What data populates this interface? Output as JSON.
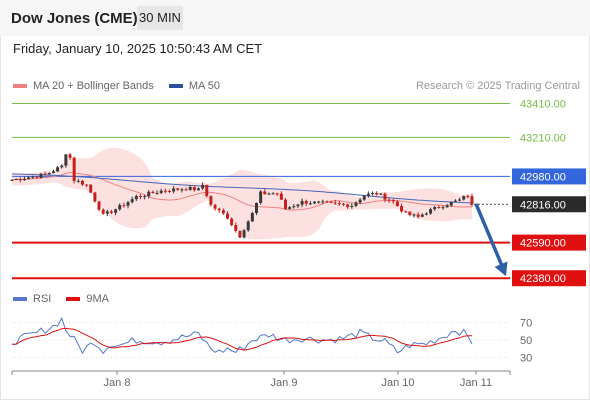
{
  "header": {
    "title": "Dow Jones (CME)",
    "interval": "30 MIN",
    "timestamp": "Friday, January 10, 2025 10:50:43 AM CET"
  },
  "legend": {
    "ma20_label": "MA 20 + Bollinger Bands",
    "ma50_label": "MA 50",
    "credit": "Research © 2025 Trading Central"
  },
  "rsi_legend": {
    "rsi_label": "RSI",
    "ma_label": "9MA"
  },
  "colors": {
    "up": "#3a3a3a",
    "down": "#c41f1f",
    "ma20": "#f08080",
    "bollinger": "#fde0e0",
    "ma50": "#4466bb",
    "resistance": "#77bb44",
    "pivot": "#3366dd",
    "support": "#e01010",
    "arrow": "#2f5fa8",
    "rsi": "#5577cc",
    "rsi_ma": "#dd1111"
  },
  "chart_data": [
    {
      "type": "candlestick",
      "title": "Dow Jones (CME)",
      "interval": "30 MIN",
      "x_ticks": [
        "Jan 8",
        "Jan 9",
        "Jan 10",
        "Jan 11"
      ],
      "ylim": [
        42340,
        43460
      ],
      "levels": [
        {
          "label": "43410.00",
          "value": 43410,
          "kind": "resistance"
        },
        {
          "label": "43210.00",
          "value": 43210,
          "kind": "resistance"
        },
        {
          "label": "42980.00",
          "value": 42980,
          "kind": "pivot"
        },
        {
          "label": "42816.00",
          "value": 42816,
          "kind": "last"
        },
        {
          "label": "42590.00",
          "value": 42590,
          "kind": "support"
        },
        {
          "label": "42380.00",
          "value": 42380,
          "kind": "support"
        }
      ],
      "last_price": 42816,
      "arrow": {
        "from": 42818,
        "to": 42380
      },
      "series": [
        {
          "name": "MA 20 + Bollinger Bands",
          "kind": "ma20_bollinger"
        },
        {
          "name": "MA 50",
          "kind": "ma50"
        }
      ],
      "ma50_start": 42995,
      "ma50_end": 42825,
      "anchors": [
        [
          0,
          42960
        ],
        [
          8,
          42990
        ],
        [
          12,
          43040
        ],
        [
          13,
          43120
        ],
        [
          14,
          43090
        ],
        [
          15,
          42960
        ],
        [
          18,
          42930
        ],
        [
          22,
          42750
        ],
        [
          26,
          42800
        ],
        [
          30,
          42860
        ],
        [
          36,
          42895
        ],
        [
          42,
          42910
        ],
        [
          44,
          42905
        ],
        [
          45,
          42900
        ],
        [
          46,
          42930
        ],
        [
          48,
          42810
        ],
        [
          52,
          42740
        ],
        [
          54,
          42660
        ],
        [
          55,
          42630
        ],
        [
          58,
          42760
        ],
        [
          60,
          42880
        ],
        [
          64,
          42880
        ],
        [
          66,
          42790
        ],
        [
          70,
          42830
        ],
        [
          76,
          42820
        ],
        [
          82,
          42810
        ],
        [
          85,
          42870
        ],
        [
          88,
          42880
        ],
        [
          92,
          42830
        ],
        [
          95,
          42760
        ],
        [
          98,
          42740
        ],
        [
          100,
          42770
        ],
        [
          104,
          42810
        ],
        [
          108,
          42840
        ],
        [
          110,
          42870
        ],
        [
          111,
          42816
        ]
      ]
    },
    {
      "type": "line",
      "title": "RSI",
      "yticks": [
        70,
        50,
        30
      ],
      "ylim": [
        20,
        80
      ],
      "series": [
        {
          "name": "RSI",
          "kind": "rsi"
        },
        {
          "name": "9MA",
          "kind": "rsi_ma"
        }
      ],
      "rsi_anchors": [
        [
          0,
          48
        ],
        [
          6,
          58
        ],
        [
          10,
          66
        ],
        [
          12,
          74
        ],
        [
          13,
          62
        ],
        [
          15,
          50
        ],
        [
          17,
          38
        ],
        [
          20,
          48
        ],
        [
          22,
          38
        ],
        [
          24,
          46
        ],
        [
          26,
          44
        ],
        [
          30,
          50
        ],
        [
          36,
          48
        ],
        [
          42,
          54
        ],
        [
          45,
          57
        ],
        [
          48,
          40
        ],
        [
          50,
          36
        ],
        [
          52,
          40
        ],
        [
          54,
          36
        ],
        [
          56,
          42
        ],
        [
          58,
          50
        ],
        [
          62,
          56
        ],
        [
          66,
          50
        ],
        [
          70,
          52
        ],
        [
          76,
          50
        ],
        [
          80,
          52
        ],
        [
          84,
          58
        ],
        [
          86,
          54
        ],
        [
          90,
          48
        ],
        [
          93,
          36
        ],
        [
          96,
          44
        ],
        [
          100,
          46
        ],
        [
          104,
          54
        ],
        [
          107,
          62
        ],
        [
          109,
          58
        ],
        [
          111,
          48
        ]
      ]
    }
  ]
}
